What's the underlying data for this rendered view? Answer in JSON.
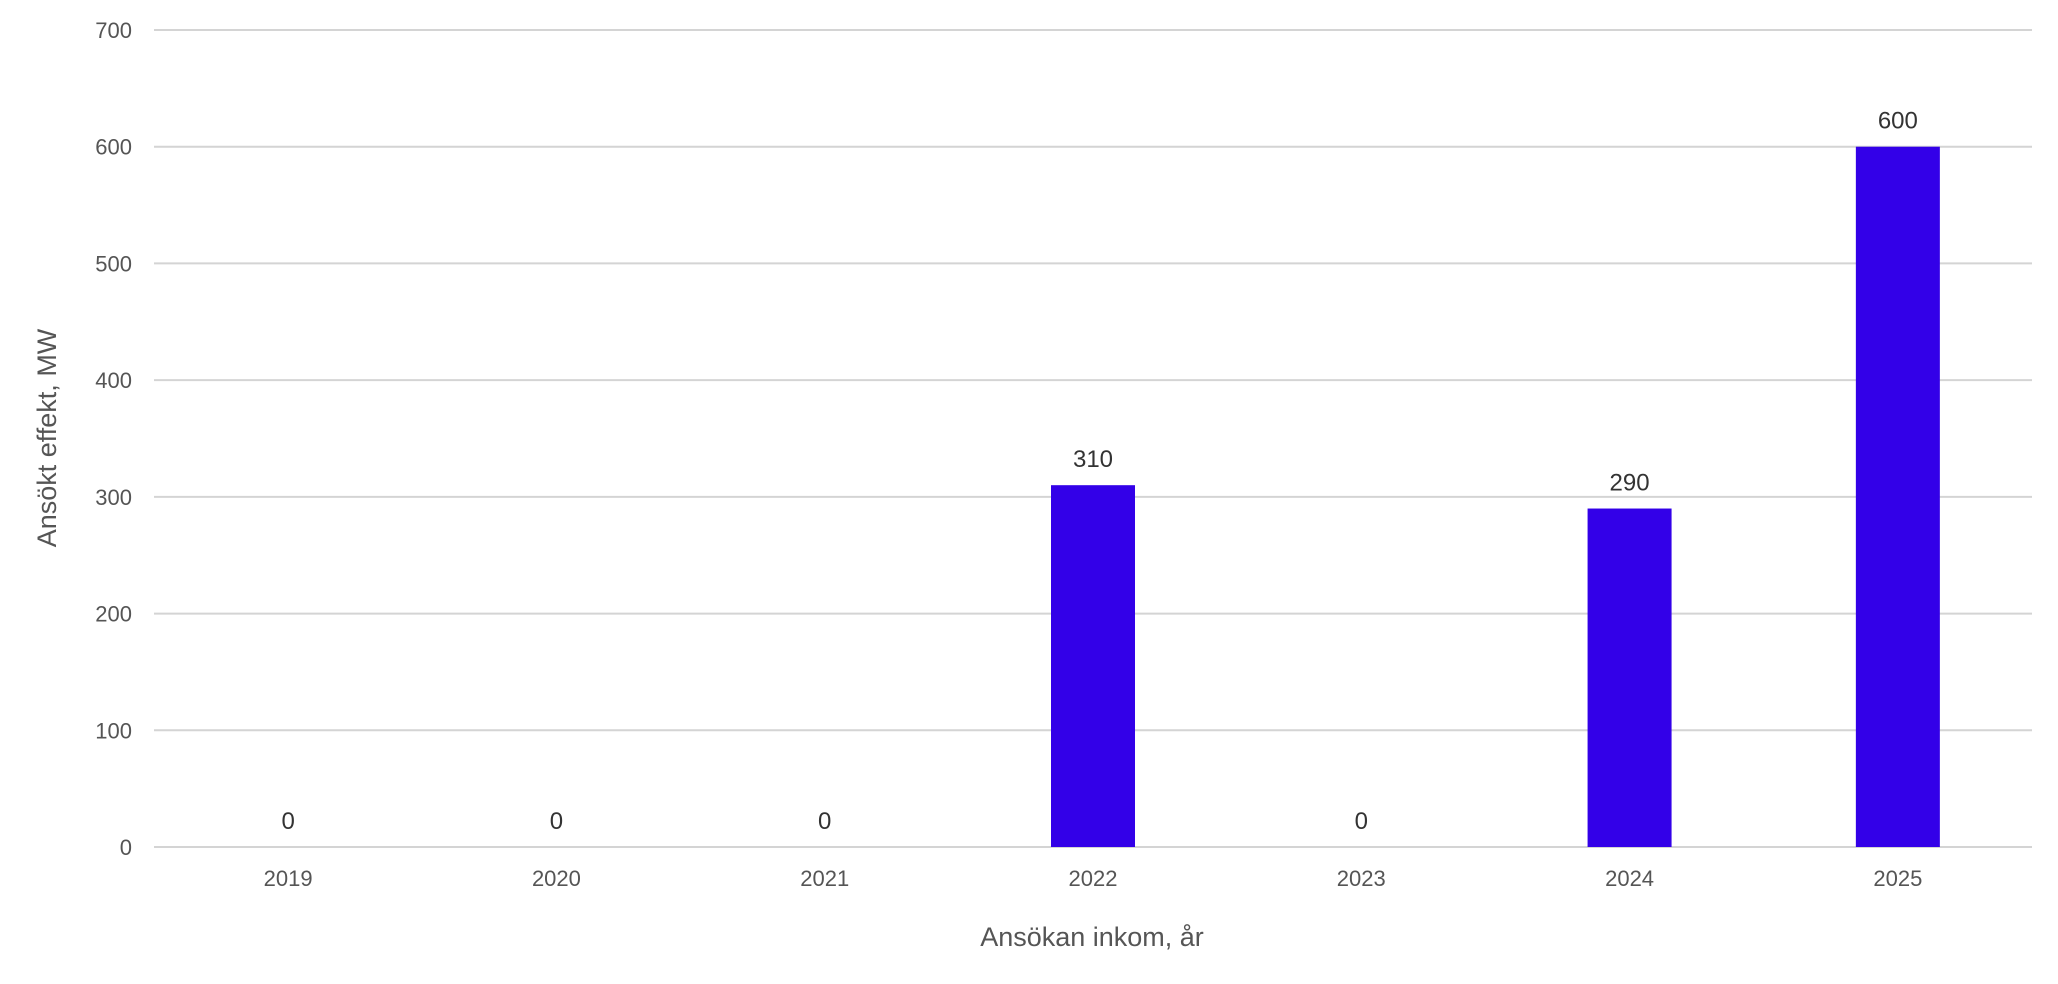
{
  "chart_data": {
    "type": "bar",
    "categories": [
      "2019",
      "2020",
      "2021",
      "2022",
      "2023",
      "2024",
      "2025"
    ],
    "values": [
      0,
      0,
      0,
      310,
      0,
      290,
      600
    ],
    "xlabel": "Ansökan inkom, år",
    "ylabel": "Ansökt effekt, MW",
    "ylim": [
      0,
      700
    ],
    "yticks": [
      0,
      100,
      200,
      300,
      400,
      500,
      600,
      700
    ],
    "grid": true,
    "data_labels": true,
    "bar_color": "#3300e8"
  }
}
